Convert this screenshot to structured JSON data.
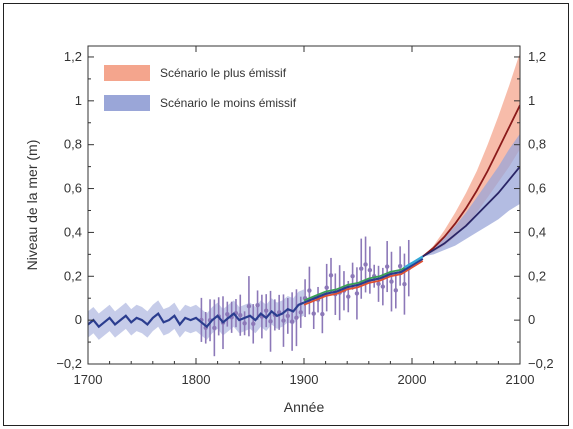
{
  "chart_data": {
    "type": "line",
    "title": "",
    "xlabel": "Année",
    "ylabel": "Niveau de la mer (m)",
    "xlim": [
      1700,
      2100
    ],
    "ylim": [
      -0.2,
      1.25
    ],
    "x_ticks": [
      1700,
      1800,
      1900,
      2000,
      2100
    ],
    "y_ticks": [
      -0.2,
      0,
      0.2,
      0.4,
      0.6,
      0.8,
      1,
      1.2
    ],
    "y_tick_labels": [
      "−0,2",
      "0",
      "0,2",
      "0,4",
      "0,6",
      "0,8",
      "1",
      "1,2"
    ],
    "x_tick_labels": [
      "1700",
      "1800",
      "1900",
      "2000",
      "2100"
    ],
    "legend": [
      {
        "label": "Scénario le plus émissif",
        "color": "#f4a58d"
      },
      {
        "label": "Scénario le moins émissif",
        "color": "#9aa6d8"
      }
    ],
    "legend_position": "top-left",
    "grid": false,
    "colors": {
      "reconstruction_line": "#2b3d8f",
      "reconstruction_band": "#b8bfe3",
      "tide_gauge_points": "#8c78b8",
      "projection_high_line": "#8b1a1a",
      "projection_high_band": "#f4a58d",
      "projection_low_line": "#2a2566",
      "projection_low_band": "#9aa6d8",
      "tide_gauge_red": "#e05030",
      "tide_gauge_green": "#3aa055",
      "satellite": "#35a8d8"
    },
    "series": [
      {
        "kind": "reconstruction",
        "x": [
          1700,
          1705,
          1710,
          1715,
          1720,
          1725,
          1730,
          1735,
          1740,
          1745,
          1750,
          1755,
          1760,
          1765,
          1770,
          1775,
          1780,
          1785,
          1790,
          1795,
          1800,
          1805,
          1810,
          1815,
          1820,
          1825,
          1830,
          1835,
          1840,
          1845,
          1850,
          1855,
          1860,
          1865,
          1870,
          1875,
          1880,
          1885,
          1890,
          1895,
          1900
        ],
        "y": [
          -0.02,
          0.0,
          -0.03,
          -0.01,
          0.01,
          -0.02,
          0.0,
          0.02,
          -0.01,
          0.01,
          0.0,
          -0.02,
          0.01,
          0.03,
          -0.01,
          0.0,
          0.02,
          -0.02,
          0.01,
          0.0,
          0.01,
          -0.01,
          -0.03,
          0.0,
          0.02,
          -0.01,
          0.01,
          0.03,
          0.0,
          0.01,
          0.02,
          0.0,
          0.03,
          0.01,
          0.04,
          0.02,
          0.03,
          0.05,
          0.04,
          0.07,
          0.08
        ]
      },
      {
        "kind": "tide_gauge",
        "x": [
          1900,
          1910,
          1920,
          1930,
          1940,
          1950,
          1960,
          1970,
          1980,
          1990,
          2000,
          2010
        ],
        "y": [
          0.08,
          0.1,
          0.12,
          0.13,
          0.15,
          0.16,
          0.18,
          0.19,
          0.21,
          0.22,
          0.25,
          0.28
        ]
      },
      {
        "kind": "projection_high",
        "x": [
          2010,
          2020,
          2030,
          2040,
          2050,
          2060,
          2070,
          2080,
          2090,
          2100
        ],
        "y": [
          0.29,
          0.33,
          0.38,
          0.44,
          0.51,
          0.59,
          0.68,
          0.78,
          0.88,
          0.98
        ],
        "lower": [
          0.29,
          0.31,
          0.34,
          0.38,
          0.43,
          0.49,
          0.56,
          0.63,
          0.7,
          0.78
        ],
        "upper": [
          0.29,
          0.34,
          0.41,
          0.49,
          0.58,
          0.68,
          0.8,
          0.93,
          1.07,
          1.22
        ]
      },
      {
        "kind": "projection_low",
        "x": [
          2010,
          2020,
          2030,
          2040,
          2050,
          2060,
          2070,
          2080,
          2090,
          2100
        ],
        "y": [
          0.29,
          0.32,
          0.35,
          0.39,
          0.43,
          0.48,
          0.53,
          0.58,
          0.64,
          0.7
        ],
        "lower": [
          0.29,
          0.3,
          0.32,
          0.34,
          0.37,
          0.4,
          0.43,
          0.46,
          0.5,
          0.53
        ],
        "upper": [
          0.29,
          0.33,
          0.38,
          0.43,
          0.49,
          0.56,
          0.63,
          0.7,
          0.78,
          0.85
        ]
      }
    ]
  }
}
